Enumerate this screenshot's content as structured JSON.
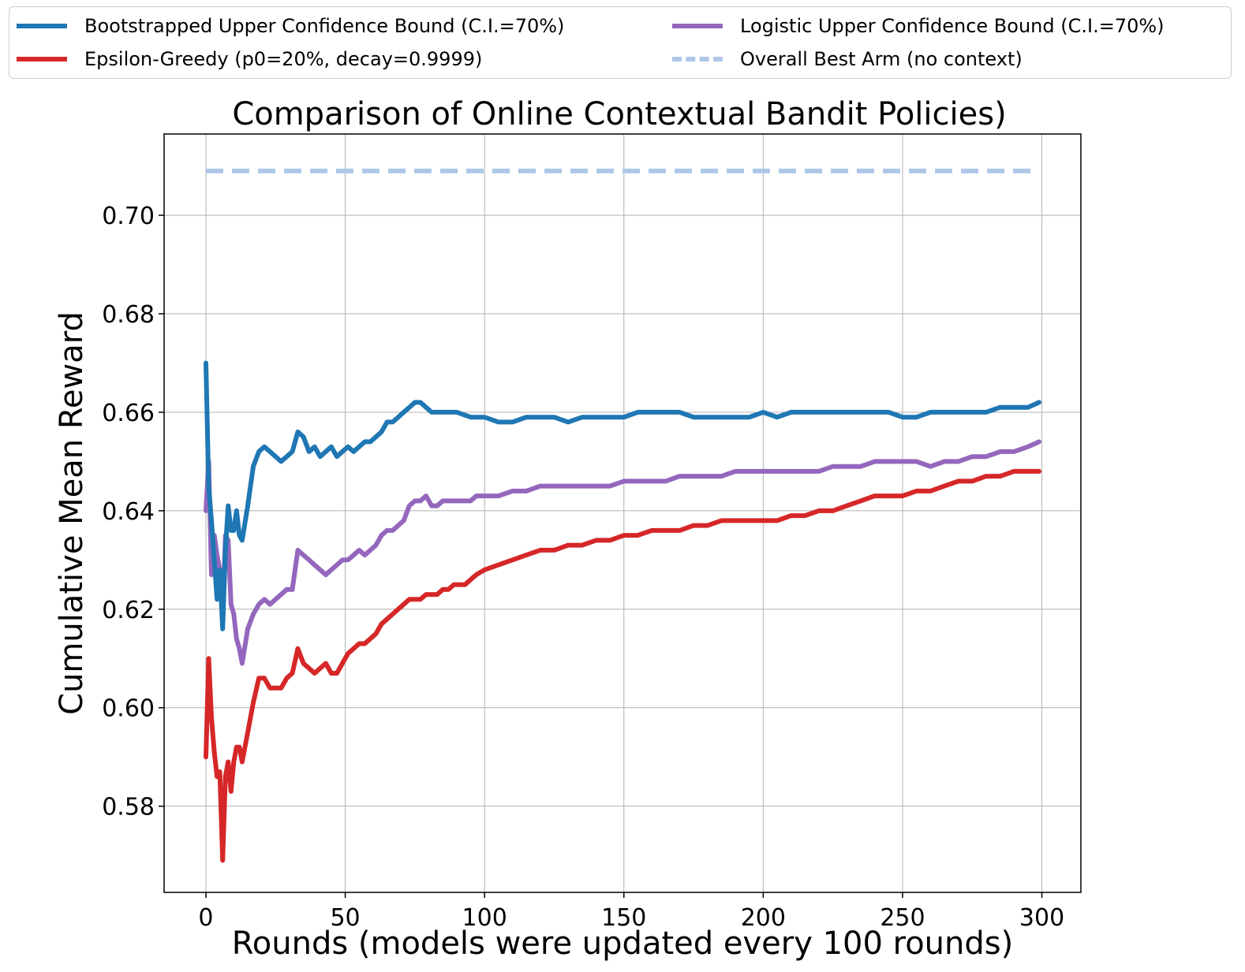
{
  "chart_data": {
    "type": "line",
    "title": "Comparison of Online Contextual Bandit Policies)",
    "xlabel": "Rounds (models were updated every 100 rounds)",
    "ylabel": "Cumulative Mean Reward",
    "xlim": [
      -15,
      314
    ],
    "ylim": [
      0.5625,
      0.7165
    ],
    "xticks": [
      0,
      50,
      100,
      150,
      200,
      250,
      300
    ],
    "yticks": [
      0.58,
      0.6,
      0.62,
      0.64,
      0.66,
      0.68,
      0.7
    ],
    "xtick_labels": [
      "0",
      "50",
      "100",
      "150",
      "200",
      "250",
      "300"
    ],
    "ytick_labels": [
      "0.58",
      "0.60",
      "0.62",
      "0.64",
      "0.66",
      "0.68",
      "0.70"
    ],
    "grid": true,
    "legend_position": "top, above plot, two columns",
    "series": [
      {
        "name": "Bootstrapped Upper Confidence Bound (C.I.=70%)",
        "color": "#1f77b4",
        "dashed": false,
        "points": [
          [
            0,
            0.67
          ],
          [
            1,
            0.645
          ],
          [
            2,
            0.638
          ],
          [
            3,
            0.63
          ],
          [
            4,
            0.622
          ],
          [
            5,
            0.628
          ],
          [
            6,
            0.616
          ],
          [
            7,
            0.632
          ],
          [
            8,
            0.641
          ],
          [
            9,
            0.636
          ],
          [
            10,
            0.636
          ],
          [
            11,
            0.64
          ],
          [
            12,
            0.635
          ],
          [
            13,
            0.634
          ],
          [
            15,
            0.641
          ],
          [
            17,
            0.649
          ],
          [
            19,
            0.652
          ],
          [
            21,
            0.653
          ],
          [
            23,
            0.652
          ],
          [
            25,
            0.651
          ],
          [
            27,
            0.65
          ],
          [
            29,
            0.651
          ],
          [
            31,
            0.652
          ],
          [
            33,
            0.656
          ],
          [
            35,
            0.655
          ],
          [
            37,
            0.652
          ],
          [
            39,
            0.653
          ],
          [
            41,
            0.651
          ],
          [
            43,
            0.652
          ],
          [
            45,
            0.653
          ],
          [
            47,
            0.651
          ],
          [
            49,
            0.652
          ],
          [
            51,
            0.653
          ],
          [
            53,
            0.652
          ],
          [
            55,
            0.653
          ],
          [
            57,
            0.654
          ],
          [
            59,
            0.654
          ],
          [
            61,
            0.655
          ],
          [
            63,
            0.656
          ],
          [
            65,
            0.658
          ],
          [
            67,
            0.658
          ],
          [
            69,
            0.659
          ],
          [
            71,
            0.66
          ],
          [
            73,
            0.661
          ],
          [
            75,
            0.662
          ],
          [
            77,
            0.662
          ],
          [
            79,
            0.661
          ],
          [
            81,
            0.66
          ],
          [
            85,
            0.66
          ],
          [
            90,
            0.66
          ],
          [
            95,
            0.659
          ],
          [
            100,
            0.659
          ],
          [
            105,
            0.658
          ],
          [
            110,
            0.658
          ],
          [
            115,
            0.659
          ],
          [
            120,
            0.659
          ],
          [
            125,
            0.659
          ],
          [
            130,
            0.658
          ],
          [
            135,
            0.659
          ],
          [
            140,
            0.659
          ],
          [
            145,
            0.659
          ],
          [
            150,
            0.659
          ],
          [
            155,
            0.66
          ],
          [
            160,
            0.66
          ],
          [
            165,
            0.66
          ],
          [
            170,
            0.66
          ],
          [
            175,
            0.659
          ],
          [
            180,
            0.659
          ],
          [
            185,
            0.659
          ],
          [
            190,
            0.659
          ],
          [
            195,
            0.659
          ],
          [
            200,
            0.66
          ],
          [
            205,
            0.659
          ],
          [
            210,
            0.66
          ],
          [
            215,
            0.66
          ],
          [
            220,
            0.66
          ],
          [
            225,
            0.66
          ],
          [
            230,
            0.66
          ],
          [
            235,
            0.66
          ],
          [
            240,
            0.66
          ],
          [
            245,
            0.66
          ],
          [
            250,
            0.659
          ],
          [
            255,
            0.659
          ],
          [
            260,
            0.66
          ],
          [
            265,
            0.66
          ],
          [
            270,
            0.66
          ],
          [
            275,
            0.66
          ],
          [
            280,
            0.66
          ],
          [
            285,
            0.661
          ],
          [
            290,
            0.661
          ],
          [
            295,
            0.661
          ],
          [
            299,
            0.662
          ]
        ]
      },
      {
        "name": "Epsilon-Greedy (p0=20%, decay=0.9999)",
        "color": "#d62728",
        "dashed": false,
        "points": [
          [
            0,
            0.59
          ],
          [
            1,
            0.61
          ],
          [
            2,
            0.598
          ],
          [
            3,
            0.591
          ],
          [
            4,
            0.586
          ],
          [
            5,
            0.587
          ],
          [
            6,
            0.569
          ],
          [
            7,
            0.586
          ],
          [
            8,
            0.589
          ],
          [
            9,
            0.583
          ],
          [
            10,
            0.589
          ],
          [
            11,
            0.592
          ],
          [
            12,
            0.592
          ],
          [
            13,
            0.589
          ],
          [
            15,
            0.595
          ],
          [
            17,
            0.601
          ],
          [
            19,
            0.606
          ],
          [
            21,
            0.606
          ],
          [
            23,
            0.604
          ],
          [
            25,
            0.604
          ],
          [
            27,
            0.604
          ],
          [
            29,
            0.606
          ],
          [
            31,
            0.607
          ],
          [
            33,
            0.612
          ],
          [
            35,
            0.609
          ],
          [
            37,
            0.608
          ],
          [
            39,
            0.607
          ],
          [
            41,
            0.608
          ],
          [
            43,
            0.609
          ],
          [
            45,
            0.607
          ],
          [
            47,
            0.607
          ],
          [
            49,
            0.609
          ],
          [
            51,
            0.611
          ],
          [
            53,
            0.612
          ],
          [
            55,
            0.613
          ],
          [
            57,
            0.613
          ],
          [
            59,
            0.614
          ],
          [
            61,
            0.615
          ],
          [
            63,
            0.617
          ],
          [
            65,
            0.618
          ],
          [
            67,
            0.619
          ],
          [
            69,
            0.62
          ],
          [
            71,
            0.621
          ],
          [
            73,
            0.622
          ],
          [
            75,
            0.622
          ],
          [
            77,
            0.622
          ],
          [
            79,
            0.623
          ],
          [
            81,
            0.623
          ],
          [
            83,
            0.623
          ],
          [
            85,
            0.624
          ],
          [
            87,
            0.624
          ],
          [
            89,
            0.625
          ],
          [
            91,
            0.625
          ],
          [
            93,
            0.625
          ],
          [
            95,
            0.626
          ],
          [
            97,
            0.627
          ],
          [
            100,
            0.628
          ],
          [
            105,
            0.629
          ],
          [
            110,
            0.63
          ],
          [
            115,
            0.631
          ],
          [
            120,
            0.632
          ],
          [
            125,
            0.632
          ],
          [
            130,
            0.633
          ],
          [
            135,
            0.633
          ],
          [
            140,
            0.634
          ],
          [
            145,
            0.634
          ],
          [
            150,
            0.635
          ],
          [
            155,
            0.635
          ],
          [
            160,
            0.636
          ],
          [
            165,
            0.636
          ],
          [
            170,
            0.636
          ],
          [
            175,
            0.637
          ],
          [
            180,
            0.637
          ],
          [
            185,
            0.638
          ],
          [
            190,
            0.638
          ],
          [
            195,
            0.638
          ],
          [
            200,
            0.638
          ],
          [
            205,
            0.638
          ],
          [
            210,
            0.639
          ],
          [
            215,
            0.639
          ],
          [
            220,
            0.64
          ],
          [
            225,
            0.64
          ],
          [
            230,
            0.641
          ],
          [
            235,
            0.642
          ],
          [
            240,
            0.643
          ],
          [
            245,
            0.643
          ],
          [
            250,
            0.643
          ],
          [
            255,
            0.644
          ],
          [
            260,
            0.644
          ],
          [
            265,
            0.645
          ],
          [
            270,
            0.646
          ],
          [
            275,
            0.646
          ],
          [
            280,
            0.647
          ],
          [
            285,
            0.647
          ],
          [
            290,
            0.648
          ],
          [
            295,
            0.648
          ],
          [
            299,
            0.648
          ]
        ]
      },
      {
        "name": "Logistic Upper Confidence Bound (C.I.=70%)",
        "color": "#9467bd",
        "dashed": false,
        "points": [
          [
            0,
            0.64
          ],
          [
            1,
            0.65
          ],
          [
            2,
            0.627
          ],
          [
            3,
            0.635
          ],
          [
            4,
            0.631
          ],
          [
            5,
            0.628
          ],
          [
            6,
            0.619
          ],
          [
            7,
            0.635
          ],
          [
            8,
            0.634
          ],
          [
            9,
            0.621
          ],
          [
            10,
            0.619
          ],
          [
            11,
            0.614
          ],
          [
            12,
            0.612
          ],
          [
            13,
            0.609
          ],
          [
            15,
            0.616
          ],
          [
            17,
            0.619
          ],
          [
            19,
            0.621
          ],
          [
            21,
            0.622
          ],
          [
            23,
            0.621
          ],
          [
            25,
            0.622
          ],
          [
            27,
            0.623
          ],
          [
            29,
            0.624
          ],
          [
            31,
            0.624
          ],
          [
            33,
            0.632
          ],
          [
            35,
            0.631
          ],
          [
            37,
            0.63
          ],
          [
            39,
            0.629
          ],
          [
            41,
            0.628
          ],
          [
            43,
            0.627
          ],
          [
            45,
            0.628
          ],
          [
            47,
            0.629
          ],
          [
            49,
            0.63
          ],
          [
            51,
            0.63
          ],
          [
            53,
            0.631
          ],
          [
            55,
            0.632
          ],
          [
            57,
            0.631
          ],
          [
            59,
            0.632
          ],
          [
            61,
            0.633
          ],
          [
            63,
            0.635
          ],
          [
            65,
            0.636
          ],
          [
            67,
            0.636
          ],
          [
            69,
            0.637
          ],
          [
            71,
            0.638
          ],
          [
            73,
            0.641
          ],
          [
            75,
            0.642
          ],
          [
            77,
            0.642
          ],
          [
            79,
            0.643
          ],
          [
            81,
            0.641
          ],
          [
            83,
            0.641
          ],
          [
            85,
            0.642
          ],
          [
            87,
            0.642
          ],
          [
            89,
            0.642
          ],
          [
            91,
            0.642
          ],
          [
            93,
            0.642
          ],
          [
            95,
            0.642
          ],
          [
            97,
            0.643
          ],
          [
            100,
            0.643
          ],
          [
            105,
            0.643
          ],
          [
            110,
            0.644
          ],
          [
            115,
            0.644
          ],
          [
            120,
            0.645
          ],
          [
            125,
            0.645
          ],
          [
            130,
            0.645
          ],
          [
            135,
            0.645
          ],
          [
            140,
            0.645
          ],
          [
            145,
            0.645
          ],
          [
            150,
            0.646
          ],
          [
            155,
            0.646
          ],
          [
            160,
            0.646
          ],
          [
            165,
            0.646
          ],
          [
            170,
            0.647
          ],
          [
            175,
            0.647
          ],
          [
            180,
            0.647
          ],
          [
            185,
            0.647
          ],
          [
            190,
            0.648
          ],
          [
            195,
            0.648
          ],
          [
            200,
            0.648
          ],
          [
            205,
            0.648
          ],
          [
            210,
            0.648
          ],
          [
            215,
            0.648
          ],
          [
            220,
            0.648
          ],
          [
            225,
            0.649
          ],
          [
            230,
            0.649
          ],
          [
            235,
            0.649
          ],
          [
            240,
            0.65
          ],
          [
            245,
            0.65
          ],
          [
            250,
            0.65
          ],
          [
            255,
            0.65
          ],
          [
            260,
            0.649
          ],
          [
            265,
            0.65
          ],
          [
            270,
            0.65
          ],
          [
            275,
            0.651
          ],
          [
            280,
            0.651
          ],
          [
            285,
            0.652
          ],
          [
            290,
            0.652
          ],
          [
            295,
            0.653
          ],
          [
            299,
            0.654
          ]
        ]
      },
      {
        "name": "Overall Best Arm (no context)",
        "color": "#aec7e8",
        "dashed": true,
        "points": [
          [
            0,
            0.709
          ],
          [
            299,
            0.709
          ]
        ]
      }
    ]
  },
  "legend": {
    "items": [
      {
        "label": "Bootstrapped Upper Confidence Bound (C.I.=70%)",
        "color": "#1f77b4",
        "dashed": false
      },
      {
        "label": "Epsilon-Greedy (p0=20%, decay=0.9999)",
        "color": "#d62728",
        "dashed": false
      },
      {
        "label": "Logistic Upper Confidence Bound (C.I.=70%)",
        "color": "#9467bd",
        "dashed": false
      },
      {
        "label": "Overall Best Arm (no context)",
        "color": "#aec7e8",
        "dashed": true
      }
    ]
  }
}
